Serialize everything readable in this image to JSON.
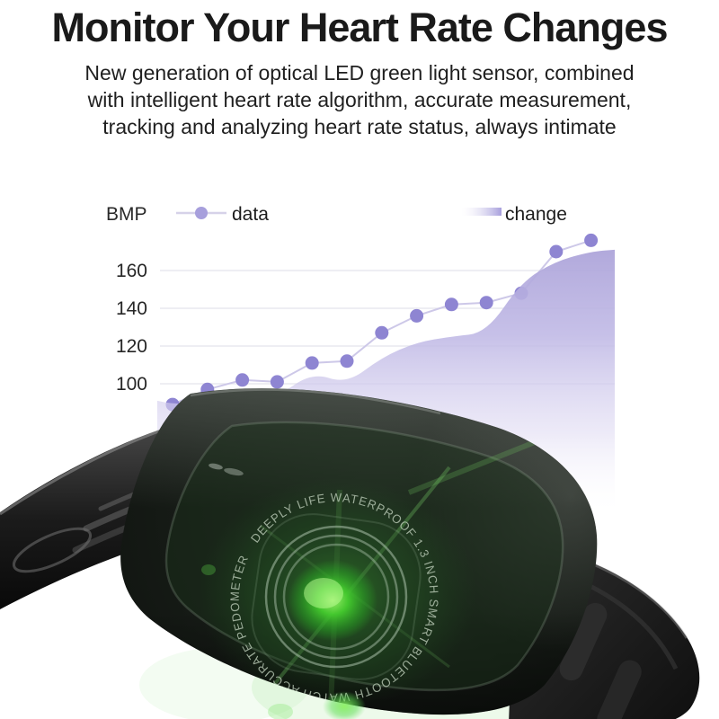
{
  "header": {
    "title": "Monitor Your Heart Rate Changes",
    "subtitle_lines": [
      "New generation of optical LED green light sensor, combined",
      "with intelligent heart rate algorithm, accurate measurement,",
      "tracking and analyzing heart rate status, always intimate"
    ]
  },
  "chart_data": {
    "type": "line",
    "unit_label": "BMP",
    "yticks": [
      160,
      140,
      120,
      100
    ],
    "ylim": [
      80,
      185
    ],
    "grid": true,
    "legend_position": "top",
    "legend": [
      {
        "label": "data",
        "marker": "dot-on-line",
        "color": "#8e85d2"
      },
      {
        "label": "change",
        "marker": "gradient-bar",
        "color": "#a89fdc"
      }
    ],
    "series": [
      {
        "name": "data",
        "values": [
          89,
          97,
          102,
          101,
          111,
          112,
          127,
          136,
          142,
          143,
          148,
          170,
          176
        ]
      },
      {
        "name": "change",
        "values": [
          91,
          89,
          90,
          95,
          93,
          106,
          100,
          114,
          122,
          125,
          127,
          154,
          165,
          170,
          171
        ]
      }
    ]
  },
  "watch": {
    "ring_text": "DEEPLY LIFE WATERPROOF 1.3 INCH SMART BLUETOOTH WATCH ACCURATE PEDOMETER",
    "glow_color": "#3ecb2e"
  },
  "colors": {
    "dot": "#8e85d2",
    "line": "#cdc8e8",
    "area_top": "#aaa1d8",
    "grid": "#e9e9ef",
    "tick_text": "#262626",
    "legend_text": "#1c1c1c"
  }
}
